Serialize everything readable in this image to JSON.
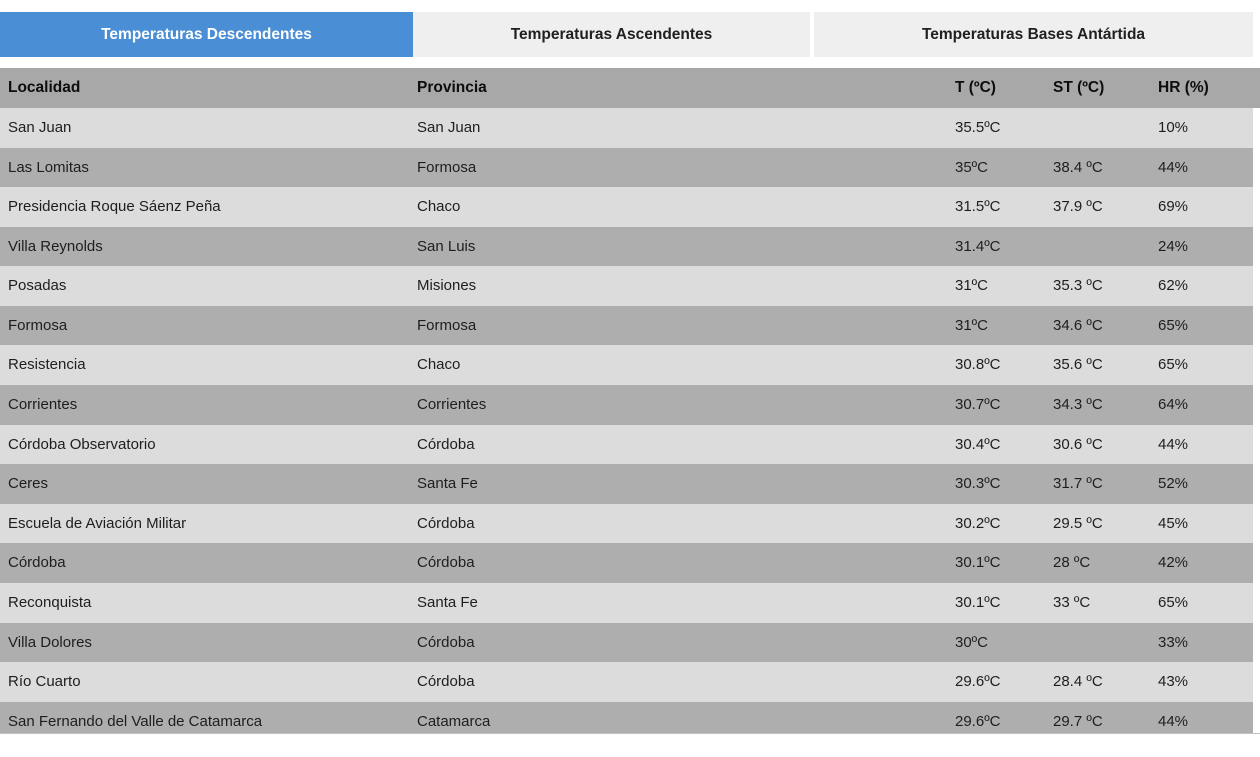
{
  "tabs": [
    {
      "label": "Temperaturas Descendentes",
      "active": true
    },
    {
      "label": "Temperaturas Ascendentes",
      "active": false
    },
    {
      "label": "Temperaturas Bases Antártida",
      "active": false
    }
  ],
  "table": {
    "columns": [
      "Localidad",
      "Provincia",
      "T (ºC)",
      "ST (ºC)",
      "HR (%)"
    ],
    "rows": [
      [
        "San Juan",
        "San Juan",
        "35.5ºC",
        "",
        "10%"
      ],
      [
        "Las Lomitas",
        "Formosa",
        "35ºC",
        "38.4 ºC",
        "44%"
      ],
      [
        "Presidencia Roque Sáenz Peña",
        "Chaco",
        "31.5ºC",
        "37.9 ºC",
        "69%"
      ],
      [
        "Villa Reynolds",
        "San Luis",
        "31.4ºC",
        "",
        "24%"
      ],
      [
        "Posadas",
        "Misiones",
        "31ºC",
        "35.3 ºC",
        "62%"
      ],
      [
        "Formosa",
        "Formosa",
        "31ºC",
        "34.6 ºC",
        "65%"
      ],
      [
        "Resistencia",
        "Chaco",
        "30.8ºC",
        "35.6 ºC",
        "65%"
      ],
      [
        "Corrientes",
        "Corrientes",
        "30.7ºC",
        "34.3 ºC",
        "64%"
      ],
      [
        "Córdoba Observatorio",
        "Córdoba",
        "30.4ºC",
        "30.6 ºC",
        "44%"
      ],
      [
        "Ceres",
        "Santa Fe",
        "30.3ºC",
        "31.7 ºC",
        "52%"
      ],
      [
        "Escuela de Aviación Militar",
        "Córdoba",
        "30.2ºC",
        "29.5 ºC",
        "45%"
      ],
      [
        "Córdoba",
        "Córdoba",
        "30.1ºC",
        "28 ºC",
        "42%"
      ],
      [
        "Reconquista",
        "Santa Fe",
        "30.1ºC",
        "33 ºC",
        "65%"
      ],
      [
        "Villa Dolores",
        "Córdoba",
        "30ºC",
        "",
        "33%"
      ],
      [
        "Río Cuarto",
        "Córdoba",
        "29.6ºC",
        "28.4 ºC",
        "43%"
      ],
      [
        "San Fernando del Valle de Catamarca",
        "Catamarca",
        "29.6ºC",
        "29.7 ºC",
        "44%"
      ]
    ]
  },
  "colors": {
    "active_tab": "#4a8fd5",
    "inactive_tab_bg": "#efefef",
    "header_bg": "#a8a8a8",
    "row_light": "#dcdcdc",
    "row_dark": "#aeaeae"
  }
}
